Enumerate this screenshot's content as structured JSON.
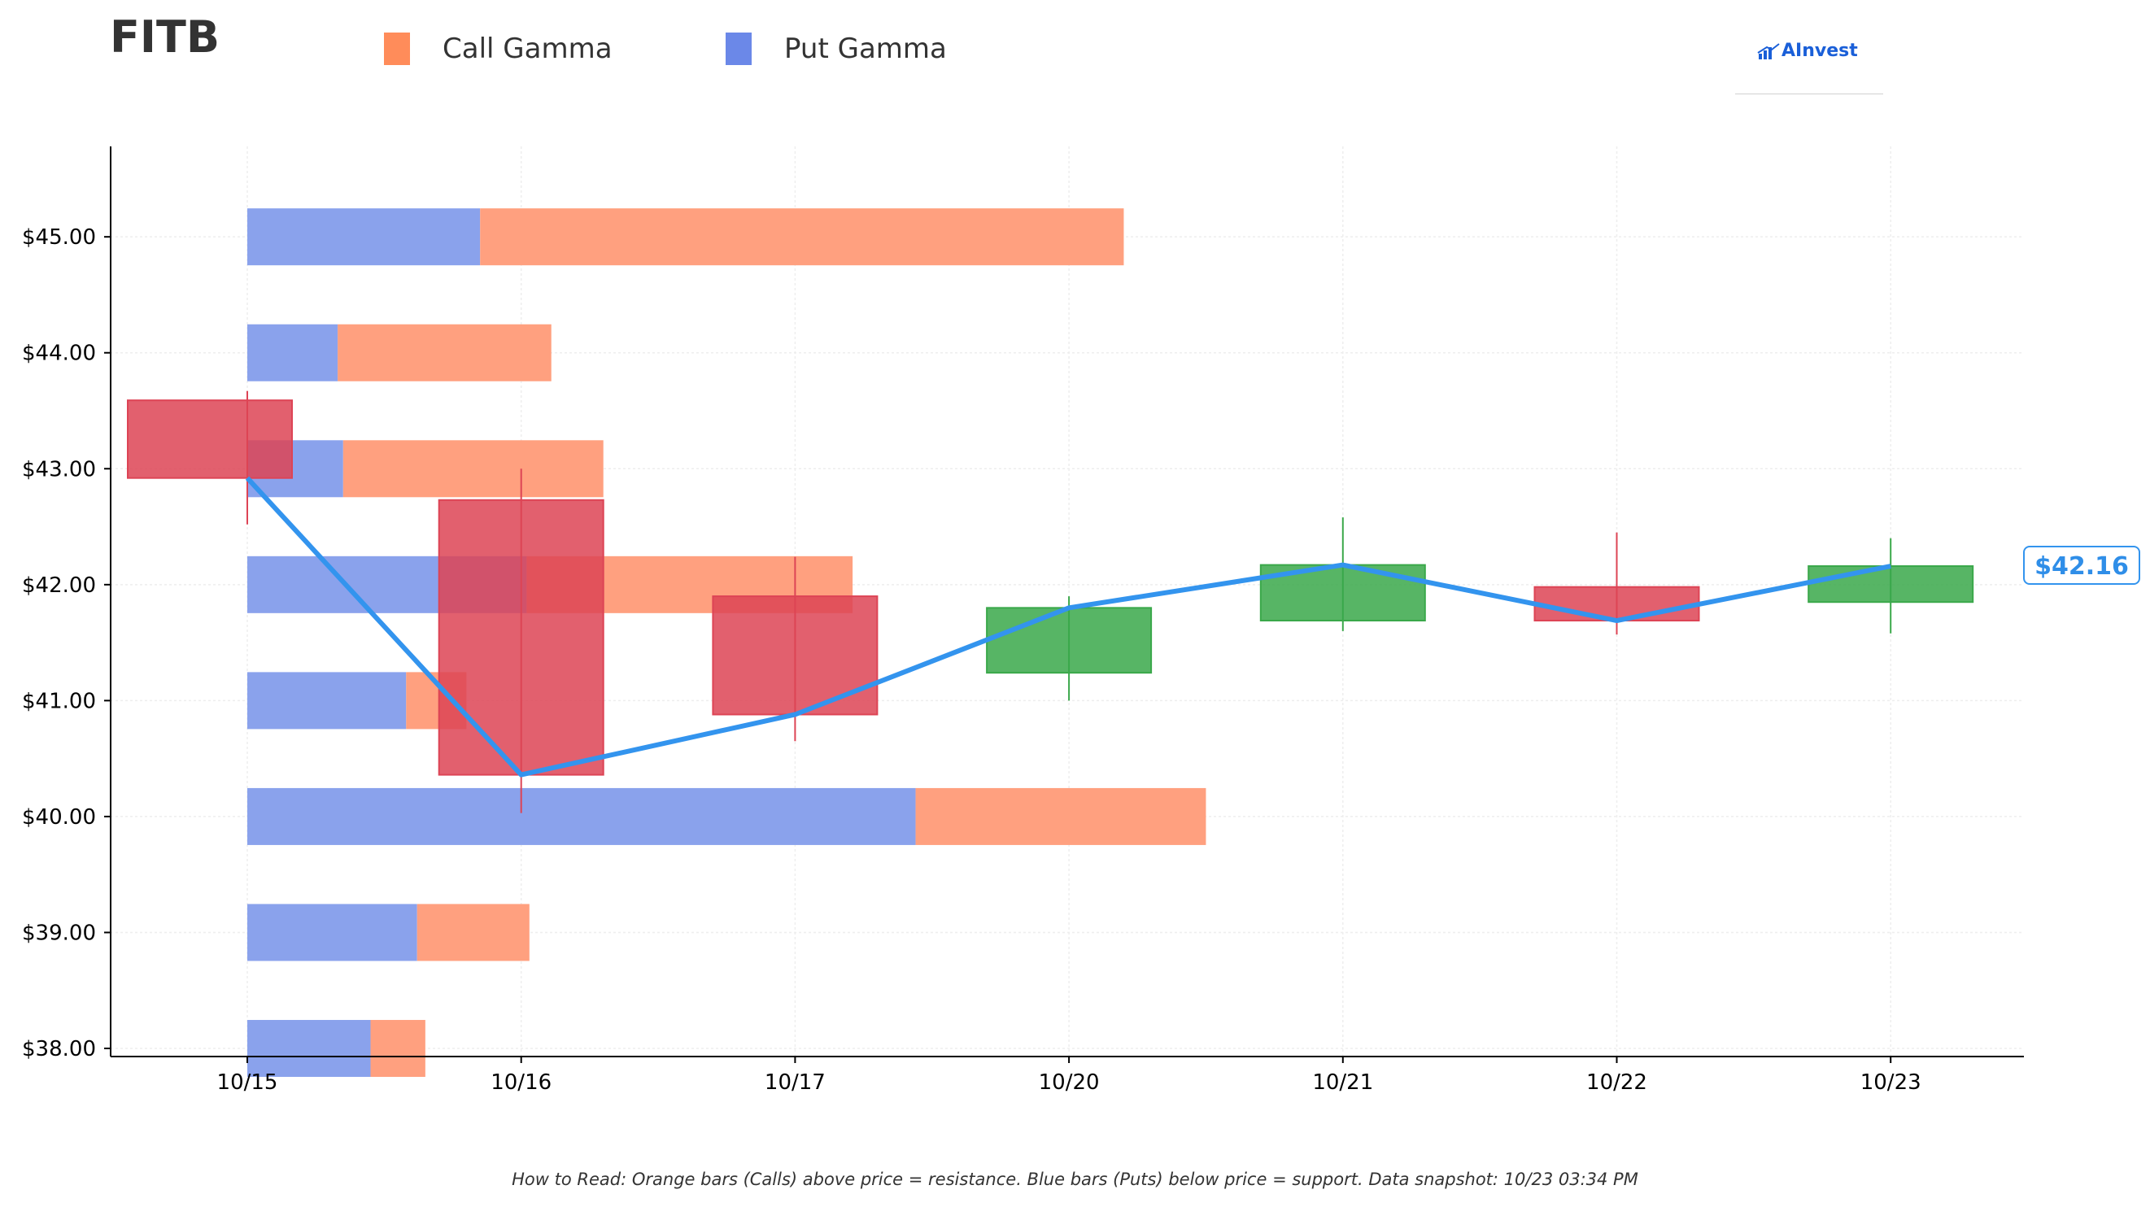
{
  "header": {
    "ticker": "FITB",
    "logo_text": "AInvest"
  },
  "legend": [
    {
      "label": "Call Gamma",
      "color": "#ff8c5a"
    },
    {
      "label": "Put Gamma",
      "color": "#6b88e8"
    }
  ],
  "footnote": "How to Read: Orange bars (Calls) above price = resistance. Blue bars (Puts) below price = support. Data snapshot: 10/23 03:34 PM",
  "colors": {
    "call": "#ffa07f",
    "put": "#8aa2ec",
    "up": "#3aa84a",
    "down": "#dd4455",
    "line": "#3394ee"
  },
  "chart_data": {
    "type": "candlestick",
    "categories": [
      "10/15",
      "10/16",
      "10/17",
      "10/20",
      "10/21",
      "10/22",
      "10/23"
    ],
    "ylim": [
      37.93,
      45.78
    ],
    "y_ticks": [
      "$38.00",
      "$39.00",
      "$40.00",
      "$41.00",
      "$42.00",
      "$43.00",
      "$44.00",
      "$45.00"
    ],
    "y_tick_values": [
      38,
      39,
      40,
      41,
      42,
      43,
      44,
      45
    ],
    "candles": [
      {
        "date": "10/15",
        "open": 43.59,
        "high": 43.67,
        "low": 42.52,
        "close": 42.92
      },
      {
        "date": "10/16",
        "open": 42.73,
        "high": 43.0,
        "low": 40.03,
        "close": 40.36
      },
      {
        "date": "10/17",
        "open": 41.9,
        "high": 42.24,
        "low": 40.65,
        "close": 40.88
      },
      {
        "date": "10/20",
        "open": 41.24,
        "high": 41.9,
        "low": 41.0,
        "close": 41.8
      },
      {
        "date": "10/21",
        "open": 41.69,
        "high": 42.58,
        "low": 41.6,
        "close": 42.17
      },
      {
        "date": "10/22",
        "open": 41.98,
        "high": 42.45,
        "low": 41.57,
        "close": 41.69
      },
      {
        "date": "10/23",
        "open": 41.85,
        "high": 42.4,
        "low": 41.58,
        "close": 42.16
      }
    ],
    "close_line": {
      "name": "",
      "values": [
        42.92,
        40.36,
        40.88,
        41.8,
        42.17,
        41.69,
        42.16
      ]
    },
    "last_price_label": "$42.16",
    "gamma_bars": [
      {
        "strike": 38,
        "put": 0.45,
        "call": 0.2
      },
      {
        "strike": 39,
        "put": 0.62,
        "call": 0.41
      },
      {
        "strike": 40,
        "put": 2.44,
        "call": 1.06
      },
      {
        "strike": 41,
        "put": 0.58,
        "call": 0.22
      },
      {
        "strike": 42,
        "put": 1.02,
        "call": 1.19
      },
      {
        "strike": 43,
        "put": 0.35,
        "call": 0.95
      },
      {
        "strike": 44,
        "put": 0.33,
        "call": 0.78
      },
      {
        "strike": 45,
        "put": 0.85,
        "call": 2.35
      }
    ],
    "grid": true
  }
}
